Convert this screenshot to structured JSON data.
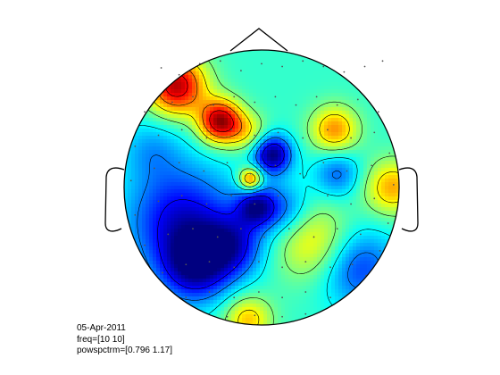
{
  "figure": {
    "background": "#ffffff"
  },
  "info": {
    "date": "05-Apr-2011",
    "freq": "freq=[10 10]",
    "powspctrm": "powspctrm=[0.796 1.17]"
  },
  "chart_data": {
    "type": "heatmap",
    "kind": "topoplot",
    "title": "",
    "clim": [
      0.796,
      1.17
    ],
    "freq": [
      10,
      10
    ],
    "colormap": "jet",
    "contours": true,
    "sensor_markers": "dot",
    "colors": {
      "outline": "#000000",
      "marker": "#555555"
    },
    "sources": [
      {
        "x": -0.62,
        "y": 0.74,
        "w": 0.15,
        "v": 1.15
      },
      {
        "x": -0.3,
        "y": 0.48,
        "w": 0.11,
        "v": 1.16
      },
      {
        "x": -0.1,
        "y": 0.4,
        "w": 0.1,
        "v": 1.02
      },
      {
        "x": -0.08,
        "y": 0.06,
        "w": 0.06,
        "v": 1.1
      },
      {
        "x": 0.53,
        "y": 0.42,
        "w": 0.12,
        "v": 1.07
      },
      {
        "x": 0.95,
        "y": 0.0,
        "w": 0.14,
        "v": 1.06
      },
      {
        "x": 0.38,
        "y": -0.4,
        "w": 0.2,
        "v": 1.04
      },
      {
        "x": -0.1,
        "y": -0.96,
        "w": 0.12,
        "v": 1.05
      },
      {
        "x": 0.08,
        "y": 0.24,
        "w": 0.1,
        "v": 0.796
      },
      {
        "x": -0.58,
        "y": -0.24,
        "w": 0.28,
        "v": 0.83
      },
      {
        "x": -0.48,
        "y": -0.58,
        "w": 0.18,
        "v": 0.83
      },
      {
        "x": -0.2,
        "y": -0.42,
        "w": 0.16,
        "v": 0.86
      },
      {
        "x": 0.7,
        "y": -0.58,
        "w": 0.2,
        "v": 0.86
      },
      {
        "x": -0.04,
        "y": -0.14,
        "w": 0.1,
        "v": 0.84
      },
      {
        "x": 0.55,
        "y": 0.1,
        "w": 0.12,
        "v": 0.88
      },
      {
        "x": 0.16,
        "y": -0.16,
        "w": 0.14,
        "v": 0.88
      },
      {
        "x": -0.8,
        "y": 0.28,
        "w": 0.16,
        "v": 0.91
      }
    ],
    "baseline": 0.955,
    "sensors": [
      [
        -0.73,
        0.87
      ],
      [
        -0.6,
        0.82
      ],
      [
        -0.45,
        0.9
      ],
      [
        -0.3,
        0.92
      ],
      [
        -0.15,
        0.85
      ],
      [
        0.0,
        0.9
      ],
      [
        0.15,
        0.88
      ],
      [
        0.3,
        0.92
      ],
      [
        0.45,
        0.88
      ],
      [
        0.6,
        0.84
      ],
      [
        0.75,
        0.88
      ],
      [
        0.88,
        0.92
      ],
      [
        -0.85,
        0.55
      ],
      [
        -0.65,
        0.62
      ],
      [
        -0.5,
        0.66
      ],
      [
        -0.35,
        0.6
      ],
      [
        -0.2,
        0.66
      ],
      [
        -0.05,
        0.62
      ],
      [
        0.1,
        0.66
      ],
      [
        0.25,
        0.6
      ],
      [
        0.4,
        0.66
      ],
      [
        0.55,
        0.6
      ],
      [
        0.7,
        0.64
      ],
      [
        0.85,
        0.55
      ],
      [
        -0.92,
        0.3
      ],
      [
        -0.75,
        0.38
      ],
      [
        -0.58,
        0.42
      ],
      [
        -0.4,
        0.36
      ],
      [
        -0.22,
        0.42
      ],
      [
        -0.05,
        0.38
      ],
      [
        0.12,
        0.4
      ],
      [
        0.3,
        0.36
      ],
      [
        0.48,
        0.42
      ],
      [
        0.65,
        0.36
      ],
      [
        0.82,
        0.4
      ],
      [
        0.93,
        0.25
      ],
      [
        -0.95,
        0.05
      ],
      [
        -0.78,
        0.14
      ],
      [
        -0.6,
        0.18
      ],
      [
        -0.42,
        0.12
      ],
      [
        -0.25,
        0.18
      ],
      [
        -0.08,
        0.1
      ],
      [
        0.1,
        0.16
      ],
      [
        0.28,
        0.1
      ],
      [
        0.45,
        0.18
      ],
      [
        0.62,
        0.12
      ],
      [
        0.8,
        0.16
      ],
      [
        0.96,
        0.02
      ],
      [
        -0.92,
        -0.2
      ],
      [
        -0.75,
        -0.1
      ],
      [
        -0.58,
        -0.06
      ],
      [
        -0.4,
        -0.12
      ],
      [
        -0.22,
        -0.06
      ],
      [
        -0.05,
        -0.12
      ],
      [
        0.12,
        -0.06
      ],
      [
        0.3,
        -0.12
      ],
      [
        0.48,
        -0.06
      ],
      [
        0.65,
        -0.12
      ],
      [
        0.82,
        -0.08
      ],
      [
        0.92,
        -0.26
      ],
      [
        -0.85,
        -0.42
      ],
      [
        -0.68,
        -0.34
      ],
      [
        -0.5,
        -0.3
      ],
      [
        -0.32,
        -0.36
      ],
      [
        -0.15,
        -0.3
      ],
      [
        0.02,
        -0.36
      ],
      [
        0.2,
        -0.3
      ],
      [
        0.38,
        -0.36
      ],
      [
        0.55,
        -0.3
      ],
      [
        0.72,
        -0.34
      ],
      [
        0.86,
        -0.46
      ],
      [
        -0.72,
        -0.62
      ],
      [
        -0.55,
        -0.56
      ],
      [
        -0.38,
        -0.54
      ],
      [
        -0.2,
        -0.58
      ],
      [
        -0.02,
        -0.54
      ],
      [
        0.15,
        -0.58
      ],
      [
        0.32,
        -0.54
      ],
      [
        0.5,
        -0.58
      ],
      [
        0.66,
        -0.56
      ],
      [
        0.76,
        -0.64
      ],
      [
        -0.55,
        -0.8
      ],
      [
        -0.38,
        -0.76
      ],
      [
        -0.2,
        -0.8
      ],
      [
        -0.02,
        -0.76
      ],
      [
        0.15,
        -0.8
      ],
      [
        0.32,
        -0.76
      ],
      [
        0.5,
        -0.8
      ],
      [
        -0.25,
        -0.94
      ],
      [
        -0.05,
        -0.93
      ],
      [
        0.15,
        -0.94
      ],
      [
        0.32,
        -0.92
      ]
    ]
  }
}
